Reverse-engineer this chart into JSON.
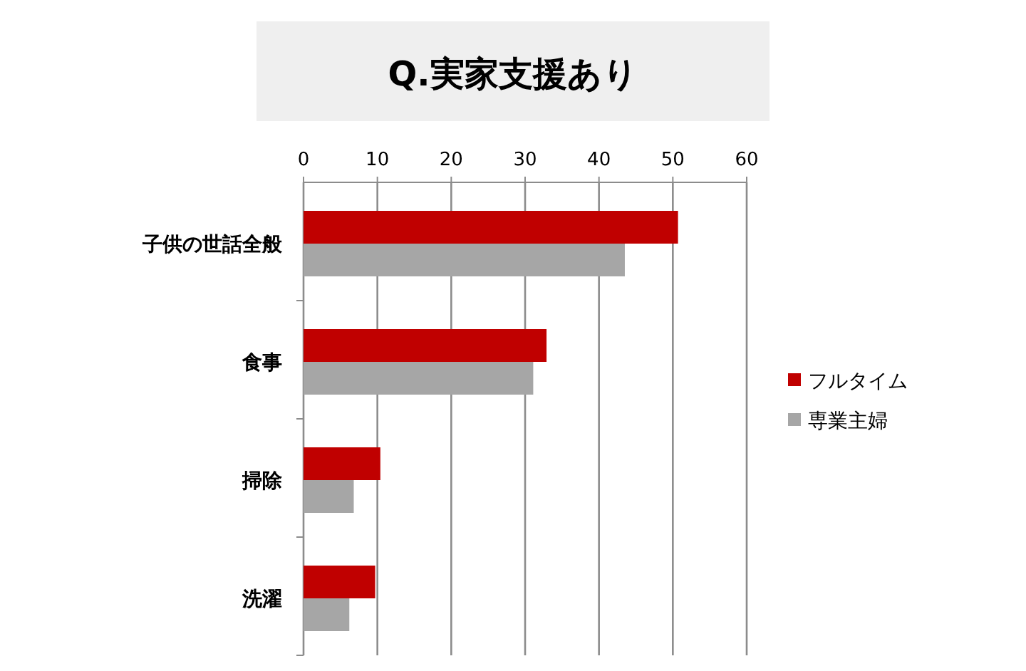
{
  "chart_data": {
    "type": "bar",
    "orientation": "horizontal",
    "title": "Q.実家支援あり",
    "categories": [
      "子供の世話全般",
      "食事",
      "掃除",
      "洗濯"
    ],
    "series": [
      {
        "name": "フルタイム",
        "color": "#c00000",
        "values": [
          50.7,
          32.9,
          10.4,
          9.7
        ]
      },
      {
        "name": "専業主婦",
        "color": "#a6a6a6",
        "values": [
          43.5,
          31.1,
          6.8,
          6.2
        ]
      }
    ],
    "xlim": [
      0,
      60
    ],
    "xticks": [
      0,
      10,
      20,
      30,
      40,
      50,
      60
    ],
    "grid": "x",
    "legend": "right"
  }
}
